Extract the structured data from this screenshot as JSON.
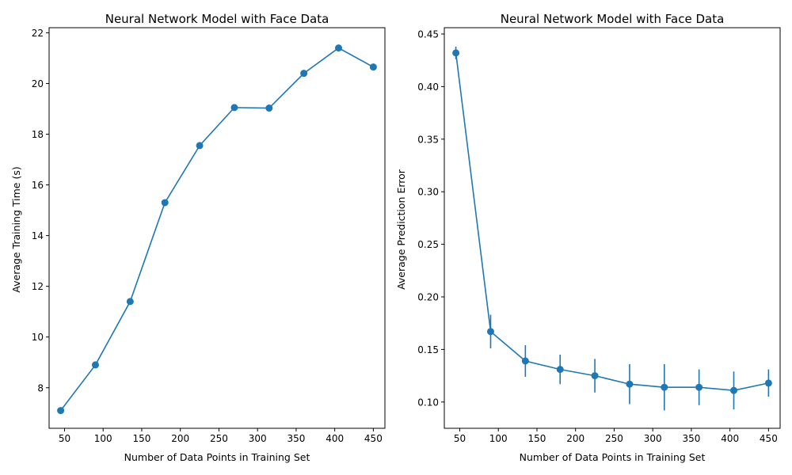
{
  "figure": {
    "series_color": "#1f77b4"
  },
  "chart_data": [
    {
      "type": "line",
      "title": "Neural Network Model with Face Data",
      "xlabel": "Number of Data Points in Training Set",
      "ylabel": "Average Training Time (s)",
      "xlim": [
        30,
        465
      ],
      "ylim": [
        6.4,
        22.2
      ],
      "xticks": [
        50,
        100,
        150,
        200,
        250,
        300,
        350,
        400,
        450
      ],
      "xtick_labels": [
        "50",
        "100",
        "150",
        "200",
        "250",
        "300",
        "350",
        "400",
        "450"
      ],
      "yticks": [
        8,
        10,
        12,
        14,
        16,
        18,
        20,
        22
      ],
      "ytick_labels": [
        "8",
        "10",
        "12",
        "14",
        "16",
        "18",
        "20",
        "22"
      ],
      "grid": false,
      "series": [
        {
          "x": [
            45,
            90,
            135,
            180,
            225,
            270,
            315,
            360,
            405,
            450
          ],
          "y": [
            7.1,
            8.9,
            11.4,
            15.3,
            17.55,
            19.05,
            19.03,
            20.4,
            21.4,
            20.65
          ],
          "marker": "circle"
        }
      ]
    },
    {
      "type": "line",
      "title": "Neural Network Model with Face Data",
      "xlabel": "Number of Data Points in Training Set",
      "ylabel": "Average Prediction Error",
      "xlim": [
        30,
        465
      ],
      "ylim": [
        0.075,
        0.456
      ],
      "xticks": [
        50,
        100,
        150,
        200,
        250,
        300,
        350,
        400,
        450
      ],
      "xtick_labels": [
        "50",
        "100",
        "150",
        "200",
        "250",
        "300",
        "350",
        "400",
        "450"
      ],
      "yticks": [
        0.1,
        0.15,
        0.2,
        0.25,
        0.3,
        0.35,
        0.4,
        0.45
      ],
      "ytick_labels": [
        "0.10",
        "0.15",
        "0.20",
        "0.25",
        "0.30",
        "0.35",
        "0.40",
        "0.45"
      ],
      "grid": false,
      "series": [
        {
          "x": [
            45,
            90,
            135,
            180,
            225,
            270,
            315,
            360,
            405,
            450
          ],
          "y": [
            0.432,
            0.167,
            0.139,
            0.131,
            0.125,
            0.117,
            0.114,
            0.114,
            0.111,
            0.118
          ],
          "yerr": [
            0.006,
            0.016,
            0.015,
            0.014,
            0.016,
            0.019,
            0.022,
            0.017,
            0.018,
            0.013
          ],
          "marker": "circle"
        }
      ]
    }
  ]
}
